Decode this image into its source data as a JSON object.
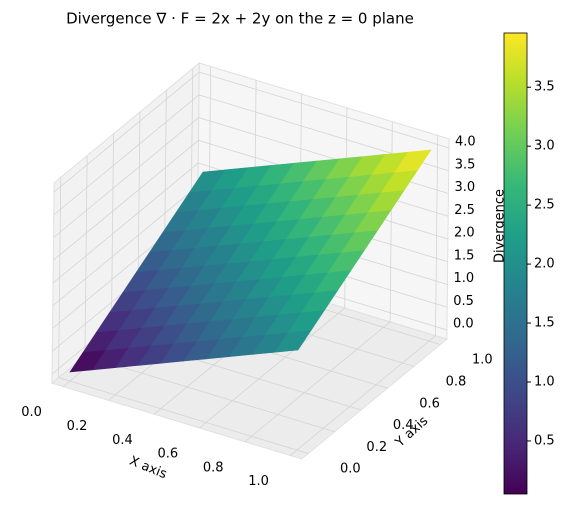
{
  "chart_data": {
    "type": "surface",
    "title": "Divergence ∇ · F = 2x + 2y on the z = 0 plane",
    "x_label": "X axis",
    "y_label": "Y axis",
    "z_label": "Divergence",
    "colormap": "viridis",
    "x": [
      0,
      0.1,
      0.2,
      0.3,
      0.4,
      0.5,
      0.6,
      0.7,
      0.8,
      0.9,
      1
    ],
    "y": [
      0,
      0.1,
      0.2,
      0.3,
      0.4,
      0.5,
      0.6,
      0.7,
      0.8,
      0.9,
      1
    ],
    "z": [
      [
        0,
        0.2,
        0.4,
        0.6,
        0.8,
        1,
        1.2,
        1.4,
        1.6,
        1.8,
        2
      ],
      [
        0.2,
        0.4,
        0.6,
        0.8,
        1,
        1.2,
        1.4,
        1.6,
        1.8,
        2,
        2.2
      ],
      [
        0.4,
        0.6,
        0.8,
        1,
        1.2,
        1.4,
        1.6,
        1.8,
        2,
        2.2,
        2.4
      ],
      [
        0.6,
        0.8,
        1,
        1.2,
        1.4,
        1.6,
        1.8,
        2,
        2.2,
        2.4,
        2.6
      ],
      [
        0.8,
        1,
        1.2,
        1.4,
        1.6,
        1.8,
        2,
        2.2,
        2.4,
        2.6,
        2.8
      ],
      [
        1,
        1.2,
        1.4,
        1.6,
        1.8,
        2,
        2.2,
        2.4,
        2.6,
        2.8,
        3
      ],
      [
        1.2,
        1.4,
        1.6,
        1.8,
        2,
        2.2,
        2.4,
        2.6,
        2.8,
        3,
        3.2
      ],
      [
        1.4,
        1.6,
        1.8,
        2,
        2.2,
        2.4,
        2.6,
        2.8,
        3,
        3.2,
        3.4
      ],
      [
        1.6,
        1.8,
        2,
        2.2,
        2.4,
        2.6,
        2.8,
        3,
        3.2,
        3.4,
        3.6
      ],
      [
        1.8,
        2,
        2.2,
        2.4,
        2.6,
        2.8,
        3,
        3.2,
        3.4,
        3.6,
        3.8
      ],
      [
        2,
        2.2,
        2.4,
        2.6,
        2.8,
        3,
        3.2,
        3.4,
        3.6,
        3.8,
        4
      ]
    ],
    "xlim": [
      -0.05,
      1.05
    ],
    "ylim": [
      -0.05,
      1.05
    ],
    "zlim": [
      -0.2,
      4.2
    ],
    "xticks": [
      {
        "value": 0,
        "label": "0.0"
      },
      0.2,
      0.4,
      0.6,
      0.8,
      {
        "value": 1,
        "label": "1.0"
      }
    ],
    "yticks": [
      {
        "value": 0,
        "label": "0.0"
      },
      0.2,
      0.4,
      0.6,
      0.8,
      {
        "value": 1,
        "label": "1.0"
      }
    ],
    "zticks": [
      {
        "value": 0,
        "label": "0.0"
      },
      0.5,
      {
        "value": 1,
        "label": "1.0"
      },
      1.5,
      {
        "value": 2,
        "label": "2.0"
      },
      2.5,
      {
        "value": 3,
        "label": "3.0"
      },
      3.5,
      {
        "value": 4,
        "label": "4.0"
      }
    ],
    "colorbar_lim": [
      0.05,
      3.96
    ],
    "colorbar_ticks": [
      0.5,
      {
        "value": 1,
        "label": "1.0"
      },
      1.5,
      {
        "value": 2,
        "label": "2.0"
      },
      2.5,
      {
        "value": 3,
        "label": "3.0"
      },
      3.5
    ],
    "grid": true
  }
}
